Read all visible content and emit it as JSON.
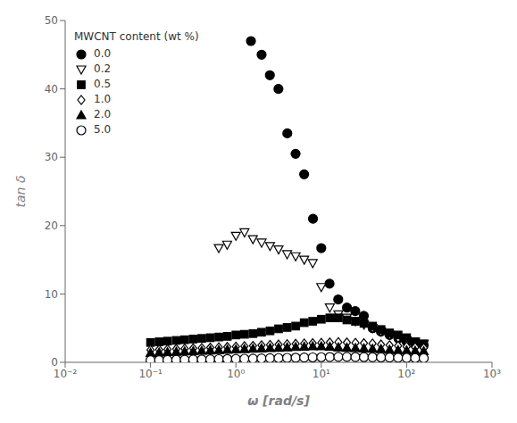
{
  "chart_data": {
    "type": "scatter",
    "xlabel": "ω [rad/s]",
    "ylabel": "tan δ",
    "log": "x",
    "xlim": [
      0.01,
      1000
    ],
    "xticks": [
      {
        "value": 0.01,
        "label": "10⁻²"
      },
      {
        "value": 0.1,
        "label": "10⁻¹"
      },
      {
        "value": 1,
        "label": "10⁰"
      },
      {
        "value": 10,
        "label": "10¹"
      },
      {
        "value": 100,
        "label": "10²"
      },
      {
        "value": 1000,
        "label": "10³"
      }
    ],
    "ylim": [
      0,
      50
    ],
    "yticks": [
      0,
      10,
      20,
      30,
      40,
      50
    ],
    "grid": false,
    "legend": "upper left",
    "legend_title": "MWCNT content (wt %)",
    "series": [
      {
        "name": "0.0",
        "color": "black",
        "marker": "circle",
        "x": [
          1.5,
          2.0,
          2.5,
          3.15,
          4.0,
          5.0,
          6.3,
          8.0,
          10.0,
          12.5,
          15.8,
          20.0,
          25.0,
          31.5,
          40.0,
          50.0,
          63.0,
          80.0,
          100.0,
          125.0,
          158.0
        ],
        "values": [
          47.0,
          45.0,
          42.0,
          40.0,
          33.5,
          30.5,
          27.5,
          21.0,
          16.7,
          11.5,
          9.2,
          8.0,
          7.5,
          6.8,
          5.0,
          4.5,
          4.0,
          3.5,
          3.0,
          2.7,
          2.5
        ]
      },
      {
        "name": "0.2",
        "color": "black",
        "marker": "triangle-down-open",
        "x": [
          0.63,
          0.79,
          1.0,
          1.26,
          1.58,
          2.0,
          2.51,
          3.16,
          3.98,
          5.01,
          6.31,
          7.94,
          10.0,
          12.59,
          15.85,
          19.95,
          25.12,
          31.62,
          39.81,
          50.12,
          63.1,
          79.43,
          100.0,
          125.9,
          158.5
        ],
        "values": [
          16.7,
          17.2,
          18.5,
          19.0,
          18.0,
          17.5,
          17.0,
          16.5,
          15.8,
          15.5,
          15.0,
          14.5,
          11.0,
          8.0,
          7.0,
          6.5,
          6.0,
          5.5,
          5.0,
          4.5,
          4.0,
          3.5,
          3.2,
          3.0,
          2.7
        ]
      },
      {
        "name": "0.5",
        "color": "black",
        "marker": "square",
        "x": [
          0.1,
          0.126,
          0.158,
          0.2,
          0.251,
          0.316,
          0.398,
          0.501,
          0.631,
          0.794,
          1.0,
          1.259,
          1.585,
          1.995,
          2.512,
          3.162,
          3.981,
          5.012,
          6.31,
          7.943,
          10.0,
          12.59,
          15.85,
          19.95,
          25.12,
          31.62,
          39.81,
          50.12,
          63.1,
          79.43,
          100.0,
          125.9,
          158.5
        ],
        "values": [
          2.9,
          3.0,
          3.1,
          3.2,
          3.3,
          3.4,
          3.5,
          3.6,
          3.7,
          3.8,
          4.0,
          4.1,
          4.2,
          4.4,
          4.6,
          4.9,
          5.1,
          5.3,
          5.8,
          6.0,
          6.3,
          6.5,
          6.5,
          6.2,
          6.0,
          5.7,
          5.3,
          4.8,
          4.3,
          4.0,
          3.6,
          3.0,
          2.7
        ]
      },
      {
        "name": "1.0",
        "color": "black",
        "marker": "diamond-open",
        "x": [
          0.1,
          0.126,
          0.158,
          0.2,
          0.251,
          0.316,
          0.398,
          0.501,
          0.631,
          0.794,
          1.0,
          1.259,
          1.585,
          1.995,
          2.512,
          3.162,
          3.981,
          5.012,
          6.31,
          7.943,
          10.0,
          12.59,
          15.85,
          19.95,
          25.12,
          31.62,
          39.81,
          50.12,
          63.1,
          79.43,
          100.0,
          125.9,
          158.5
        ],
        "values": [
          1.8,
          1.85,
          1.9,
          1.95,
          2.0,
          2.05,
          2.1,
          2.15,
          2.2,
          2.25,
          2.3,
          2.35,
          2.4,
          2.5,
          2.55,
          2.6,
          2.65,
          2.7,
          2.75,
          2.8,
          2.85,
          2.9,
          2.95,
          2.9,
          2.85,
          2.8,
          2.75,
          2.6,
          2.5,
          2.4,
          2.3,
          2.2,
          2.1
        ]
      },
      {
        "name": "2.0",
        "color": "black",
        "marker": "triangle",
        "x": [
          0.1,
          0.126,
          0.158,
          0.2,
          0.251,
          0.316,
          0.398,
          0.501,
          0.631,
          0.794,
          1.0,
          1.259,
          1.585,
          1.995,
          2.512,
          3.162,
          3.981,
          5.012,
          6.31,
          7.943,
          10.0,
          12.59,
          15.85,
          19.95,
          25.12,
          31.62,
          39.81,
          50.12,
          63.1,
          79.43,
          100.0,
          125.9,
          158.5
        ],
        "values": [
          1.4,
          1.45,
          1.5,
          1.55,
          1.6,
          1.65,
          1.7,
          1.75,
          1.8,
          1.85,
          1.9,
          1.95,
          2.0,
          2.05,
          2.1,
          2.15,
          2.2,
          2.25,
          2.3,
          2.35,
          2.35,
          2.3,
          2.2,
          2.15,
          2.1,
          2.05,
          2.0,
          1.95,
          1.85,
          1.8,
          1.75,
          1.7,
          1.65
        ]
      },
      {
        "name": "5.0",
        "color": "black",
        "marker": "circle-open",
        "x": [
          0.1,
          0.126,
          0.158,
          0.2,
          0.251,
          0.316,
          0.398,
          0.501,
          0.631,
          0.794,
          1.0,
          1.259,
          1.585,
          1.995,
          2.512,
          3.162,
          3.981,
          5.012,
          6.31,
          7.943,
          10.0,
          12.59,
          15.85,
          19.95,
          25.12,
          31.62,
          39.81,
          50.12,
          63.1,
          79.43,
          100.0,
          125.9,
          158.5
        ],
        "values": [
          0.3,
          0.32,
          0.34,
          0.36,
          0.38,
          0.4,
          0.42,
          0.44,
          0.46,
          0.48,
          0.5,
          0.52,
          0.54,
          0.56,
          0.6,
          0.62,
          0.65,
          0.68,
          0.7,
          0.72,
          0.75,
          0.78,
          0.8,
          0.8,
          0.78,
          0.76,
          0.74,
          0.72,
          0.7,
          0.68,
          0.65,
          0.62,
          0.6
        ]
      }
    ]
  }
}
